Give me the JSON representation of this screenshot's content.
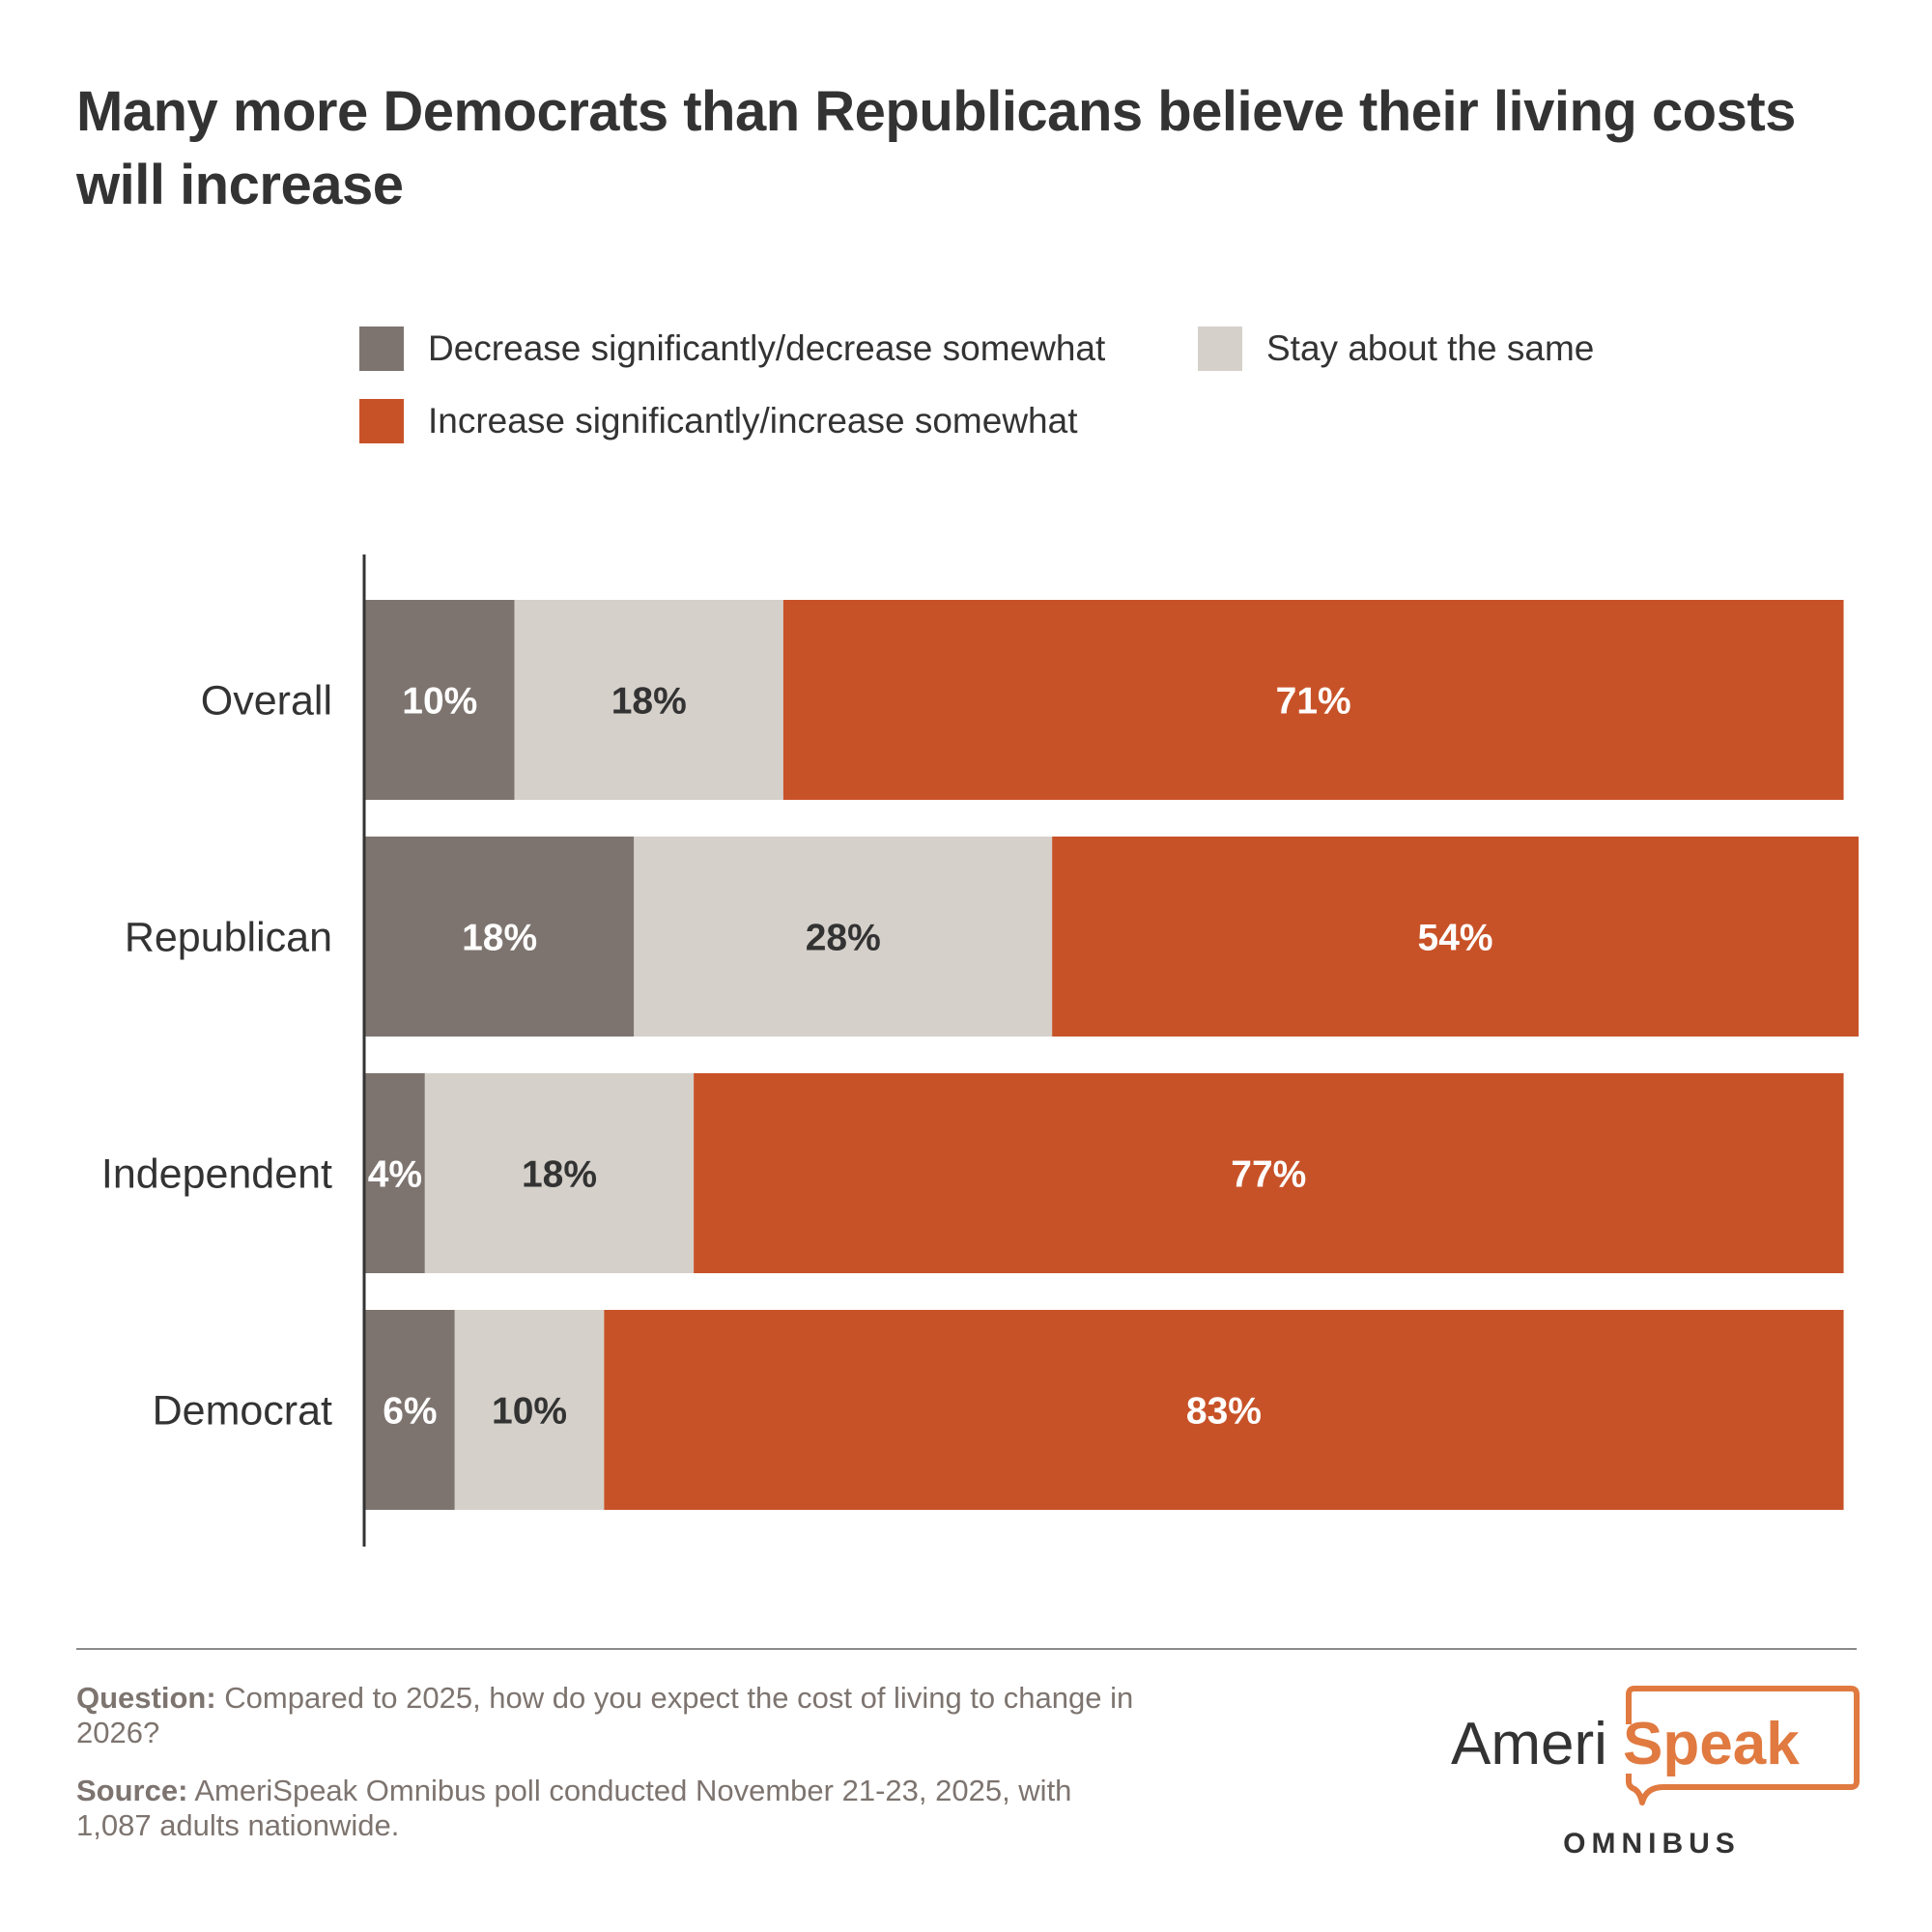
{
  "header": {
    "title": "Many more Democrats than Republicans believe their living costs will increase"
  },
  "legend": [
    {
      "label": "Decrease significantly/decrease somewhat",
      "color": "#7d746f"
    },
    {
      "label": "Stay about the same",
      "color": "#d5d0ca"
    },
    {
      "label": "Increase significantly/increase somewhat",
      "color": "#c85228"
    }
  ],
  "chart_data": {
    "type": "bar",
    "orientation": "horizontal",
    "stacked": true,
    "title": "Many more Democrats than Republicans believe their living costs will increase",
    "xlabel": "",
    "ylabel": "",
    "xlim": [
      0,
      100
    ],
    "grid": false,
    "legend_position": "top",
    "categories": [
      "Overall",
      "Republican",
      "Independent",
      "Democrat"
    ],
    "series": [
      {
        "name": "Decrease significantly/decrease somewhat",
        "color": "#7d746f",
        "label_color": "#ffffff",
        "values": [
          10,
          18,
          4,
          6
        ]
      },
      {
        "name": "Stay about the same",
        "color": "#d5d0ca",
        "label_color": "#333333",
        "values": [
          18,
          28,
          18,
          10
        ]
      },
      {
        "name": "Increase significantly/increase somewhat",
        "color": "#c85228",
        "label_color": "#ffffff",
        "values": [
          71,
          54,
          77,
          83
        ]
      }
    ],
    "value_suffix": "%"
  },
  "footer": {
    "question_label": "Question:",
    "question_text": " Compared to 2025, how do you expect the cost of living to change in 2026?",
    "source_label": "Source:",
    "source_text": " AmeriSpeak Omnibus poll conducted November 21-23, 2025, with 1,087 adults nationwide."
  },
  "logo": {
    "part1": "Ameri",
    "part2": "Speak",
    "subtitle": "OMNIBUS",
    "accent_color": "#e07a40"
  }
}
